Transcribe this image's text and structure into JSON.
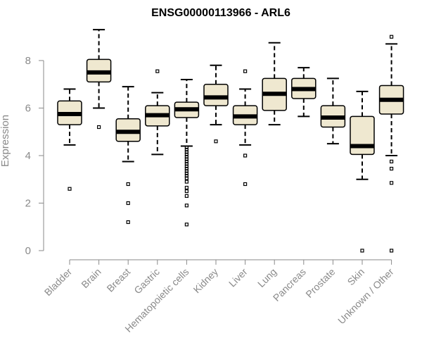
{
  "chart_data": {
    "type": "boxplot",
    "title": "ENSG00000113966 - ARL6",
    "ylabel": "Expression",
    "xlabel": "",
    "ylim": [
      0,
      9.4
    ],
    "yticks": [
      0,
      2,
      4,
      6,
      8
    ],
    "box_color": "#efe8d0",
    "categories": [
      "Bladder",
      "Brain",
      "Breast",
      "Gastric",
      "Hematopoietic cells",
      "Kidney",
      "Liver",
      "Lung",
      "Pancreas",
      "Prostate",
      "Skin",
      "Unknown / Other"
    ],
    "boxes": [
      {
        "category": "Bladder",
        "whisker_low": 4.45,
        "q1": 5.3,
        "median": 5.75,
        "q3": 6.3,
        "whisker_high": 6.8,
        "outliers": [
          2.6
        ]
      },
      {
        "category": "Brain",
        "whisker_low": 6.0,
        "q1": 7.1,
        "median": 7.5,
        "q3": 8.05,
        "whisker_high": 9.3,
        "outliers": [
          5.2
        ]
      },
      {
        "category": "Breast",
        "whisker_low": 3.75,
        "q1": 4.6,
        "median": 5.0,
        "q3": 5.55,
        "whisker_high": 6.9,
        "outliers": [
          2.8,
          2.0,
          1.2
        ]
      },
      {
        "category": "Gastric",
        "whisker_low": 4.05,
        "q1": 5.25,
        "median": 5.7,
        "q3": 6.1,
        "whisker_high": 6.65,
        "outliers": [
          7.55
        ]
      },
      {
        "category": "Hematopoietic cells",
        "whisker_low": 4.4,
        "q1": 5.6,
        "median": 5.95,
        "q3": 6.25,
        "whisker_high": 7.2,
        "outliers": [
          4.35,
          4.25,
          4.15,
          4.05,
          3.95,
          3.85,
          3.75,
          3.65,
          3.55,
          3.45,
          3.35,
          3.25,
          3.15,
          3.05,
          2.9,
          2.65,
          2.5,
          2.3,
          1.9,
          1.1
        ]
      },
      {
        "category": "Kidney",
        "whisker_low": 5.3,
        "q1": 6.1,
        "median": 6.45,
        "q3": 7.0,
        "whisker_high": 7.8,
        "outliers": [
          4.6
        ]
      },
      {
        "category": "Liver",
        "whisker_low": 4.45,
        "q1": 5.3,
        "median": 5.65,
        "q3": 6.1,
        "whisker_high": 6.8,
        "outliers": [
          7.55,
          4.0,
          2.8
        ]
      },
      {
        "category": "Lung",
        "whisker_low": 5.3,
        "q1": 5.9,
        "median": 6.6,
        "q3": 7.25,
        "whisker_high": 8.75,
        "outliers": []
      },
      {
        "category": "Pancreas",
        "whisker_low": 5.65,
        "q1": 6.4,
        "median": 6.8,
        "q3": 7.25,
        "whisker_high": 7.7,
        "outliers": []
      },
      {
        "category": "Prostate",
        "whisker_low": 4.5,
        "q1": 5.2,
        "median": 5.6,
        "q3": 6.1,
        "whisker_high": 7.25,
        "outliers": []
      },
      {
        "category": "Skin",
        "whisker_low": 3.0,
        "q1": 4.05,
        "median": 4.4,
        "q3": 5.65,
        "whisker_high": 6.7,
        "outliers": [
          0.0
        ]
      },
      {
        "category": "Unknown / Other",
        "whisker_low": 4.0,
        "q1": 5.75,
        "median": 6.35,
        "q3": 6.95,
        "whisker_high": 8.7,
        "outliers": [
          9.0,
          3.75,
          3.45,
          2.85,
          0.0
        ]
      }
    ]
  }
}
